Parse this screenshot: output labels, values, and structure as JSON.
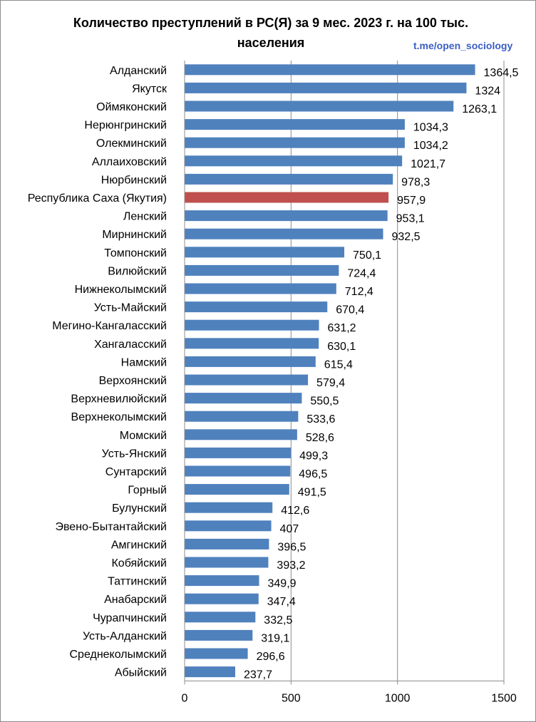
{
  "title": "Количество преступлений в РС(Я) за 9 мес. 2023 г. на 100 тыс. населения",
  "watermark": "t.me/open_sociology",
  "colors": {
    "bar": "#4f81bd",
    "highlight": "#c0504d",
    "grid": "#8c8c8c"
  },
  "chart_data": {
    "type": "bar",
    "orientation": "horizontal",
    "title": "Количество преступлений в РС(Я) за 9 мес. 2023 г. на 100 тыс. населения",
    "categories": [
      "Алданский",
      "Якутск",
      "Оймяконский",
      "Нерюнгринский",
      "Олекминский",
      "Аллаиховский",
      "Нюрбинский",
      "Республика Саха (Якутия)",
      "Ленский",
      "Мирнинский",
      "Томпонский",
      "Вилюйский",
      "Нижнеколымский",
      "Усть-Майский",
      "Мегино-Кангаласский",
      "Хангаласский",
      "Намский",
      "Верхоянский",
      "Верхневилюйский",
      "Верхнеколымский",
      "Момский",
      "Усть-Янский",
      "Сунтарский",
      "Горный",
      "Булунский",
      "Эвено-Бытантайский",
      "Амгинский",
      "Кобяйский",
      "Таттинский",
      "Анабарский",
      "Чурапчинский",
      "Усть-Алданский",
      "Среднеколымский",
      "Абыйский"
    ],
    "values": [
      1364.5,
      1324,
      1263.1,
      1034.3,
      1034.2,
      1021.7,
      978.3,
      957.9,
      953.1,
      932.5,
      750.1,
      724.4,
      712.4,
      670.4,
      631.2,
      630.1,
      615.4,
      579.4,
      550.5,
      533.6,
      528.6,
      499.3,
      496.5,
      491.5,
      412.6,
      407,
      396.5,
      393.2,
      349.9,
      347.4,
      332.5,
      319.1,
      296.6,
      237.7
    ],
    "labels": [
      "1364,5",
      "1324",
      "1263,1",
      "1034,3",
      "1034,2",
      "1021,7",
      "978,3",
      "957,9",
      "953,1",
      "932,5",
      "750,1",
      "724,4",
      "712,4",
      "670,4",
      "631,2",
      "630,1",
      "615,4",
      "579,4",
      "550,5",
      "533,6",
      "528,6",
      "499,3",
      "496,5",
      "491,5",
      "412,6",
      "407",
      "396,5",
      "393,2",
      "349,9",
      "347,4",
      "332,5",
      "319,1",
      "296,6",
      "237,7"
    ],
    "highlight": "Республика Саха (Якутия)",
    "xlim": [
      0,
      1500
    ],
    "xticks": [
      0,
      500,
      1000,
      1500
    ],
    "grid": "vertical",
    "legend": "none"
  }
}
